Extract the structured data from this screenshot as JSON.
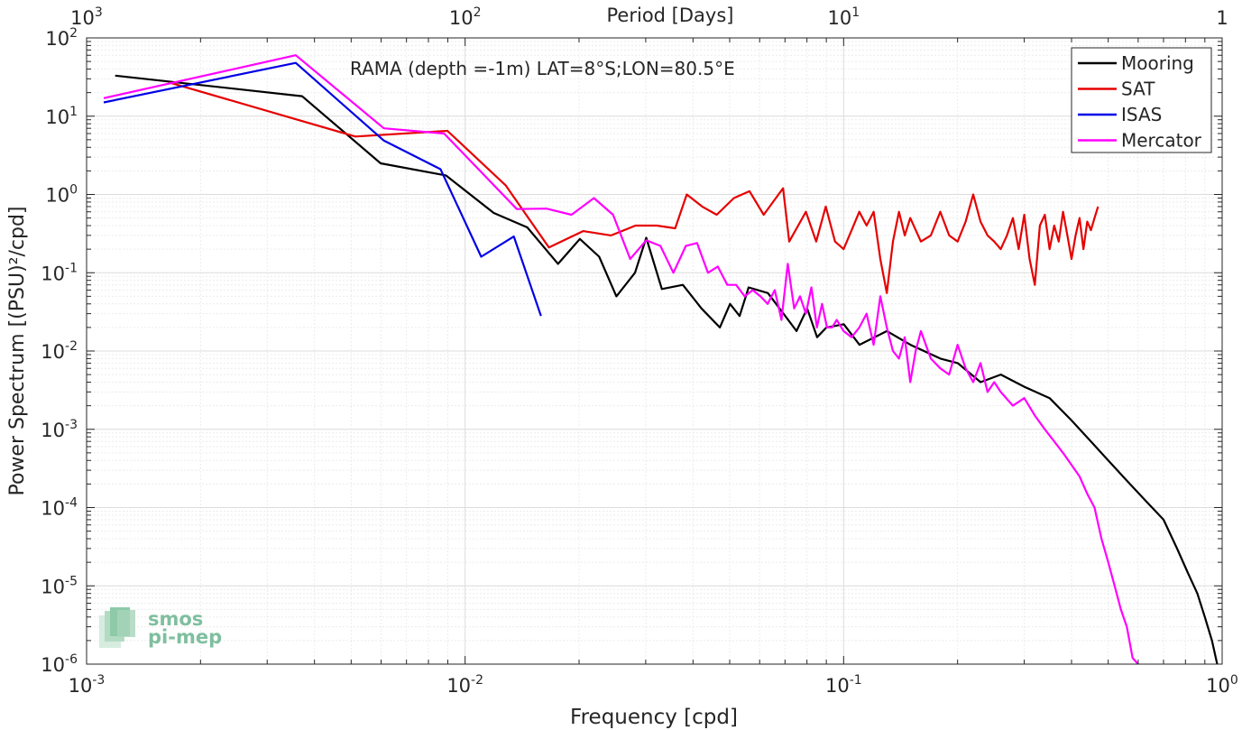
{
  "chart_data": {
    "type": "line",
    "title": "RAMA (depth =-1m) LAT=8°S;LON=80.5°E",
    "xlabel": "Frequency [cpd]",
    "ylabel": "Power Spectrum [(PSU)²/cpd]",
    "top_xlabel": "Period [Days]",
    "xscale": "log",
    "yscale": "log",
    "xlim": [
      0.001,
      1
    ],
    "ylim": [
      1e-06,
      100
    ],
    "x_ticks": [
      {
        "base": "10",
        "exp": "-3"
      },
      {
        "base": "10",
        "exp": "-2"
      },
      {
        "base": "10",
        "exp": "-1"
      },
      {
        "base": "10",
        "exp": "0"
      }
    ],
    "y_ticks": [
      {
        "base": "10",
        "exp": "-6"
      },
      {
        "base": "10",
        "exp": "-5"
      },
      {
        "base": "10",
        "exp": "-4"
      },
      {
        "base": "10",
        "exp": "-3"
      },
      {
        "base": "10",
        "exp": "-2"
      },
      {
        "base": "10",
        "exp": "-1"
      },
      {
        "base": "10",
        "exp": "0"
      },
      {
        "base": "10",
        "exp": "1"
      },
      {
        "base": "10",
        "exp": "2"
      }
    ],
    "top_ticks": [
      {
        "base": "10",
        "exp": "3"
      },
      {
        "base": "10",
        "exp": "2"
      },
      {
        "base": "10",
        "exp": "1"
      },
      {
        "base": "1",
        "exp": "0"
      }
    ],
    "grid": true,
    "legend_position": "top-right",
    "series": [
      {
        "name": "Mooring",
        "color": "#000000",
        "points": [
          [
            0.00119,
            33
          ],
          [
            0.00371,
            18
          ],
          [
            0.00598,
            2.5
          ],
          [
            0.0089,
            1.75
          ],
          [
            0.0119,
            0.58
          ],
          [
            0.0146,
            0.38
          ],
          [
            0.0176,
            0.13
          ],
          [
            0.0201,
            0.27
          ],
          [
            0.0226,
            0.16
          ],
          [
            0.0251,
            0.05
          ],
          [
            0.0281,
            0.1
          ],
          [
            0.0301,
            0.28
          ],
          [
            0.0331,
            0.062
          ],
          [
            0.0376,
            0.07
          ],
          [
            0.0421,
            0.035
          ],
          [
            0.0471,
            0.02
          ],
          [
            0.0501,
            0.04
          ],
          [
            0.0531,
            0.028
          ],
          [
            0.0561,
            0.065
          ],
          [
            0.0631,
            0.055
          ],
          [
            0.0701,
            0.028
          ],
          [
            0.0751,
            0.018
          ],
          [
            0.0801,
            0.035
          ],
          [
            0.0851,
            0.015
          ],
          [
            0.0901,
            0.02
          ],
          [
            0.1001,
            0.022
          ],
          [
            0.1101,
            0.012
          ],
          [
            0.1301,
            0.018
          ],
          [
            0.1501,
            0.012
          ],
          [
            0.1801,
            0.008
          ],
          [
            0.2001,
            0.007
          ],
          [
            0.2301,
            0.004
          ],
          [
            0.2601,
            0.005
          ],
          [
            0.3001,
            0.0035
          ],
          [
            0.3501,
            0.0025
          ],
          [
            0.4001,
            0.0013
          ],
          [
            0.4501,
            0.0007
          ],
          [
            0.5001,
            0.0004
          ],
          [
            0.5601,
            0.00022
          ],
          [
            0.6301,
            0.00012
          ],
          [
            0.7001,
            7e-05
          ],
          [
            0.7601,
            3e-05
          ],
          [
            0.8101,
            1.5e-05
          ],
          [
            0.8601,
            8e-06
          ],
          [
            0.9001,
            4e-06
          ],
          [
            0.9401,
            2e-06
          ],
          [
            0.9701,
            1e-06
          ]
        ]
      },
      {
        "name": "SAT",
        "color": "#e60000",
        "points": [
          [
            0.00165,
            27
          ],
          [
            0.00513,
            5.5
          ],
          [
            0.00898,
            6.5
          ],
          [
            0.01281,
            1.3
          ],
          [
            0.01665,
            0.21
          ],
          [
            0.0205,
            0.34
          ],
          [
            0.0243,
            0.3
          ],
          [
            0.0282,
            0.4
          ],
          [
            0.0321,
            0.4
          ],
          [
            0.0359,
            0.37
          ],
          [
            0.0385,
            1.0
          ],
          [
            0.0423,
            0.7
          ],
          [
            0.0462,
            0.55
          ],
          [
            0.0513,
            0.9
          ],
          [
            0.0564,
            1.1
          ],
          [
            0.0615,
            0.55
          ],
          [
            0.0692,
            1.2
          ],
          [
            0.0718,
            0.25
          ],
          [
            0.0795,
            0.6
          ],
          [
            0.0846,
            0.25
          ],
          [
            0.0897,
            0.7
          ],
          [
            0.0949,
            0.25
          ],
          [
            0.1,
            0.2
          ],
          [
            0.105,
            0.35
          ],
          [
            0.11,
            0.6
          ],
          [
            0.115,
            0.4
          ],
          [
            0.12,
            0.6
          ],
          [
            0.125,
            0.15
          ],
          [
            0.13,
            0.055
          ],
          [
            0.135,
            0.25
          ],
          [
            0.14,
            0.6
          ],
          [
            0.145,
            0.3
          ],
          [
            0.15,
            0.5
          ],
          [
            0.16,
            0.25
          ],
          [
            0.17,
            0.3
          ],
          [
            0.18,
            0.6
          ],
          [
            0.19,
            0.3
          ],
          [
            0.2,
            0.25
          ],
          [
            0.21,
            0.45
          ],
          [
            0.22,
            1.0
          ],
          [
            0.23,
            0.45
          ],
          [
            0.24,
            0.3
          ],
          [
            0.25,
            0.25
          ],
          [
            0.26,
            0.2
          ],
          [
            0.27,
            0.3
          ],
          [
            0.28,
            0.5
          ],
          [
            0.29,
            0.2
          ],
          [
            0.3,
            0.55
          ],
          [
            0.31,
            0.15
          ],
          [
            0.32,
            0.07
          ],
          [
            0.33,
            0.4
          ],
          [
            0.34,
            0.55
          ],
          [
            0.35,
            0.2
          ],
          [
            0.36,
            0.4
          ],
          [
            0.37,
            0.25
          ],
          [
            0.38,
            0.6
          ],
          [
            0.39,
            0.3
          ],
          [
            0.4,
            0.15
          ],
          [
            0.41,
            0.3
          ],
          [
            0.42,
            0.5
          ],
          [
            0.43,
            0.2
          ],
          [
            0.44,
            0.45
          ],
          [
            0.45,
            0.35
          ],
          [
            0.46,
            0.5
          ],
          [
            0.47,
            0.7
          ]
        ]
      },
      {
        "name": "ISAS",
        "color": "#0000e6",
        "points": [
          [
            0.00111,
            15
          ],
          [
            0.00357,
            48
          ],
          [
            0.00609,
            4.9
          ],
          [
            0.00861,
            2.1
          ],
          [
            0.01103,
            0.16
          ],
          [
            0.01345,
            0.29
          ],
          [
            0.01587,
            0.028
          ]
        ]
      },
      {
        "name": "Mercator",
        "color": "#ff00ff",
        "points": [
          [
            0.00111,
            17
          ],
          [
            0.00357,
            60
          ],
          [
            0.0061,
            7
          ],
          [
            0.0088,
            6
          ],
          [
            0.0137,
            0.65
          ],
          [
            0.0164,
            0.66
          ],
          [
            0.0191,
            0.55
          ],
          [
            0.0219,
            0.9
          ],
          [
            0.0246,
            0.55
          ],
          [
            0.0273,
            0.15
          ],
          [
            0.0301,
            0.26
          ],
          [
            0.0328,
            0.22
          ],
          [
            0.0355,
            0.1
          ],
          [
            0.0383,
            0.22
          ],
          [
            0.041,
            0.24
          ],
          [
            0.0438,
            0.1
          ],
          [
            0.0465,
            0.12
          ],
          [
            0.0493,
            0.07
          ],
          [
            0.052,
            0.07
          ],
          [
            0.0548,
            0.05
          ],
          [
            0.0575,
            0.06
          ],
          [
            0.0603,
            0.05
          ],
          [
            0.063,
            0.04
          ],
          [
            0.0658,
            0.06
          ],
          [
            0.0685,
            0.025
          ],
          [
            0.0712,
            0.13
          ],
          [
            0.074,
            0.035
          ],
          [
            0.0767,
            0.05
          ],
          [
            0.0795,
            0.03
          ],
          [
            0.0822,
            0.065
          ],
          [
            0.085,
            0.02
          ],
          [
            0.0877,
            0.04
          ],
          [
            0.0904,
            0.02
          ],
          [
            0.0932,
            0.02
          ],
          [
            0.0959,
            0.025
          ],
          [
            0.1,
            0.018
          ],
          [
            0.105,
            0.015
          ],
          [
            0.11,
            0.02
          ],
          [
            0.115,
            0.03
          ],
          [
            0.12,
            0.012
          ],
          [
            0.125,
            0.05
          ],
          [
            0.13,
            0.02
          ],
          [
            0.135,
            0.01
          ],
          [
            0.14,
            0.008
          ],
          [
            0.145,
            0.015
          ],
          [
            0.15,
            0.004
          ],
          [
            0.155,
            0.01
          ],
          [
            0.16,
            0.018
          ],
          [
            0.17,
            0.008
          ],
          [
            0.18,
            0.006
          ],
          [
            0.19,
            0.005
          ],
          [
            0.2,
            0.012
          ],
          [
            0.21,
            0.006
          ],
          [
            0.22,
            0.004
          ],
          [
            0.23,
            0.007
          ],
          [
            0.24,
            0.003
          ],
          [
            0.25,
            0.004
          ],
          [
            0.26,
            0.003
          ],
          [
            0.28,
            0.002
          ],
          [
            0.3,
            0.0025
          ],
          [
            0.32,
            0.0015
          ],
          [
            0.34,
            0.001
          ],
          [
            0.36,
            0.0007
          ],
          [
            0.38,
            0.0005
          ],
          [
            0.4,
            0.00035
          ],
          [
            0.42,
            0.00025
          ],
          [
            0.44,
            0.00015
          ],
          [
            0.46,
            0.0001
          ],
          [
            0.48,
            4e-05
          ],
          [
            0.5,
            2e-05
          ],
          [
            0.52,
            1e-05
          ],
          [
            0.54,
            5e-06
          ],
          [
            0.56,
            3e-06
          ],
          [
            0.58,
            1.2e-06
          ],
          [
            0.6,
            1e-06
          ]
        ]
      }
    ]
  },
  "watermark": {
    "line1": "smos",
    "line2": "pi-mep",
    "color": "#7fbf9f"
  }
}
